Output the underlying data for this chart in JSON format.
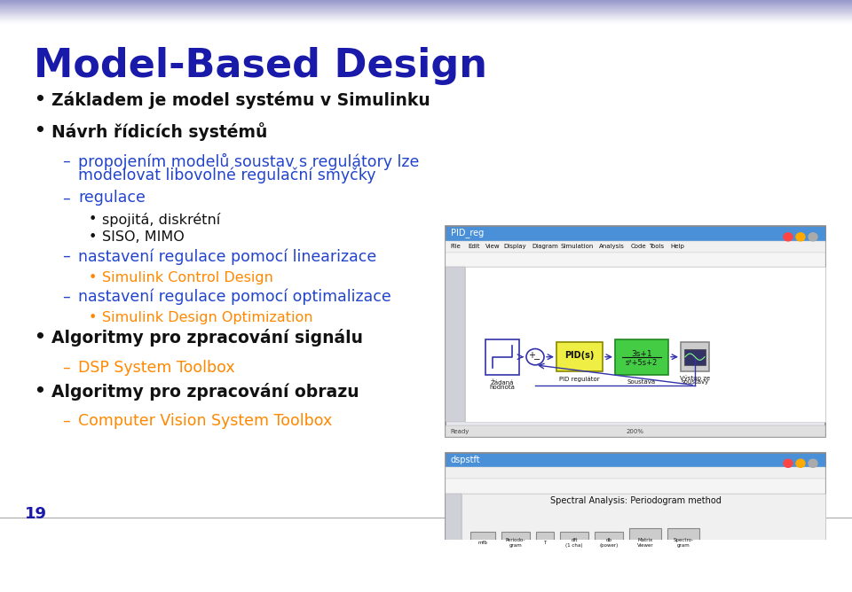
{
  "title": "Model-Based Design",
  "title_color": "#1a1aaa",
  "title_fontsize": 32,
  "background_color": "#ffffff",
  "header_gradient_colors": [
    "#9999cc",
    "#ccccee",
    "#ffffff"
  ],
  "slide_number": "19",
  "bullet_color": "#000000",
  "sub_color": "#2222cc",
  "sub2_color": "#ff8800",
  "bullet_fontsize": 14,
  "sub_fontsize": 13,
  "sub2_fontsize": 12,
  "content": [
    {
      "level": 1,
      "text": "Základem je model systému v Simulinku",
      "color": "#111111",
      "bold": true
    },
    {
      "level": 1,
      "text": "Návrh řídicích systémů",
      "color": "#111111",
      "bold": true
    },
    {
      "level": 2,
      "text": "propojením modelů soustav s regulátory lze\nmodelovat libovolné regulační smyčky",
      "color": "#2244cc",
      "bold": false
    },
    {
      "level": 2,
      "text": "regulace",
      "color": "#2244cc",
      "bold": false
    },
    {
      "level": 3,
      "text": "spojitá, diskrétní",
      "color": "#111111",
      "bold": false
    },
    {
      "level": 3,
      "text": "SISO, MIMO",
      "color": "#111111",
      "bold": false
    },
    {
      "level": 2,
      "text": "nastavení regulace pomocí linearizace",
      "color": "#2244cc",
      "bold": false
    },
    {
      "level": 3,
      "text": "Simulink Control Design",
      "color": "#ff8800",
      "bold": false
    },
    {
      "level": 2,
      "text": "nastavení regulace pomocí optimalizace",
      "color": "#2244cc",
      "bold": false
    },
    {
      "level": 3,
      "text": "Simulink Design Optimization",
      "color": "#ff8800",
      "bold": false
    },
    {
      "level": 1,
      "text": "Algoritmy pro zpracování signálu",
      "color": "#111111",
      "bold": true
    },
    {
      "level": 2,
      "text": "DSP System Toolbox",
      "color": "#ff8800",
      "bold": false
    },
    {
      "level": 1,
      "text": "Algoritmy pro zpracování obrazu",
      "color": "#111111",
      "bold": true
    },
    {
      "level": 2,
      "text": "Computer Vision System Toolbox",
      "color": "#ff8800",
      "bold": false
    }
  ]
}
